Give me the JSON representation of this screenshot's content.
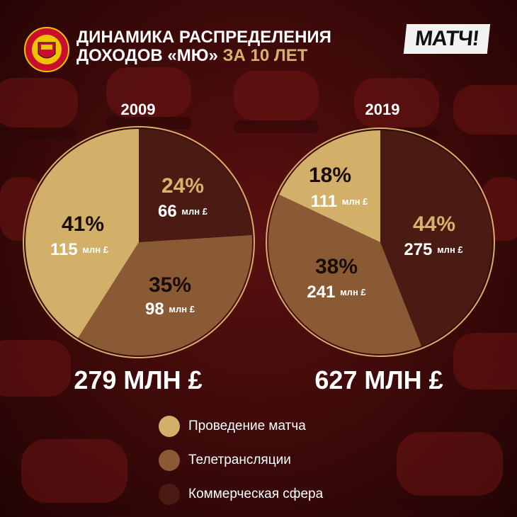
{
  "header": {
    "title_line1": "ДИНАМИКА РАСПРЕДЕЛЕНИЯ",
    "title_line2_white": "ДОХОДОВ «МЮ»",
    "title_line2_gold": "ЗА 10 ЛЕТ",
    "logo_text": "МАТЧ!",
    "crest_icon": "manchester-united-crest"
  },
  "colors": {
    "matchday": "#d2b06a",
    "broadcasting": "#8a5a35",
    "commercial": "#4a1b12",
    "gold_text": "#d6b36d",
    "dark_text": "#1a0d08",
    "white_text": "#ffffff"
  },
  "chart_data": [
    {
      "type": "pie",
      "title": "2009",
      "total_label": "279 МЛН £",
      "slices": [
        {
          "name": "Проведение матча",
          "percent": 41,
          "pct_label": "41%",
          "value": 115,
          "value_label": "115",
          "unit": "млн £"
        },
        {
          "name": "Телетрансляции",
          "percent": 35,
          "pct_label": "35%",
          "value": 98,
          "value_label": "98",
          "unit": "млн £"
        },
        {
          "name": "Коммерческая сфера",
          "percent": 24,
          "pct_label": "24%",
          "value": 66,
          "value_label": "66",
          "unit": "млн £"
        }
      ]
    },
    {
      "type": "pie",
      "title": "2019",
      "total_label": "627 МЛН £",
      "slices": [
        {
          "name": "Проведение матча",
          "percent": 18,
          "pct_label": "18%",
          "value": 111,
          "value_label": "111",
          "unit": "млн £"
        },
        {
          "name": "Телетрансляции",
          "percent": 38,
          "pct_label": "38%",
          "value": 241,
          "value_label": "241",
          "unit": "млн £"
        },
        {
          "name": "Коммерческая сфера",
          "percent": 44,
          "pct_label": "44%",
          "value": 275,
          "value_label": "275",
          "unit": "млн £"
        }
      ]
    }
  ],
  "legend": [
    {
      "label": "Проведение матча",
      "color": "#d2b06a"
    },
    {
      "label": "Телетрансляции",
      "color": "#8a5a35"
    },
    {
      "label": "Коммерческая сфера",
      "color": "#4a1b12"
    }
  ]
}
